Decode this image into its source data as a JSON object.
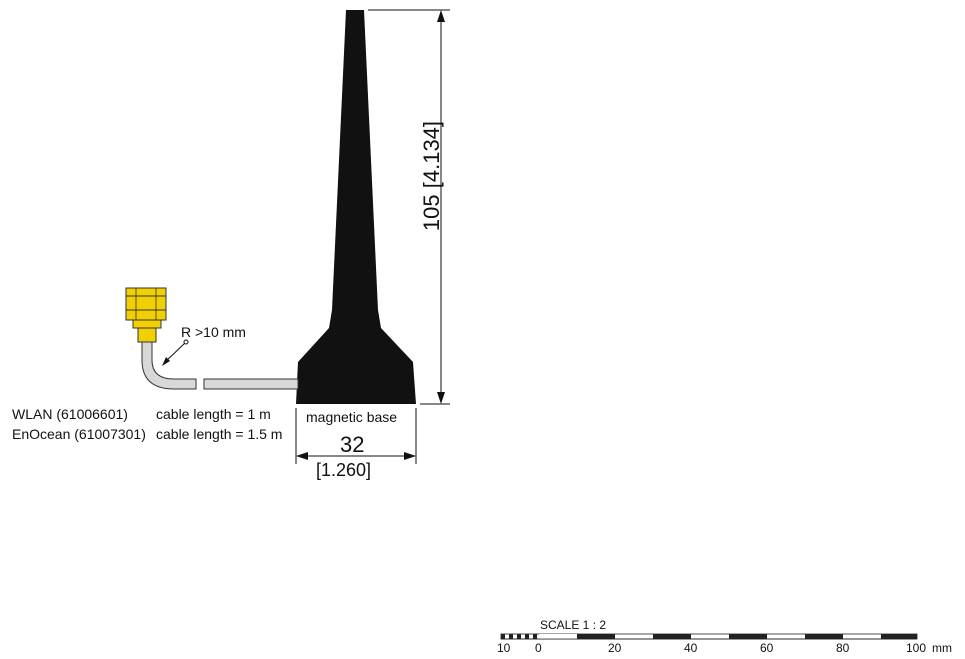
{
  "dimensions": {
    "height_label": "105 [4.134]",
    "width_label": "32",
    "width_label_inch": "[1.260]",
    "bend_radius_label": "R  >10 mm"
  },
  "labels": {
    "magnetic_base": "magnetic base",
    "products": [
      {
        "name": "WLAN (61006601)",
        "cable": "cable length = 1 m"
      },
      {
        "name": "EnOcean (61007301)",
        "cable": "cable length = 1.5 m"
      }
    ]
  },
  "scale_bar": {
    "title": "SCALE  1 : 2",
    "ticks": [
      "10",
      "0",
      "20",
      "40",
      "60",
      "80",
      "100"
    ],
    "unit": "mm"
  },
  "colors": {
    "antenna_body": "#111111",
    "connector": "#f0d000",
    "cable": "#d8d8d8"
  }
}
